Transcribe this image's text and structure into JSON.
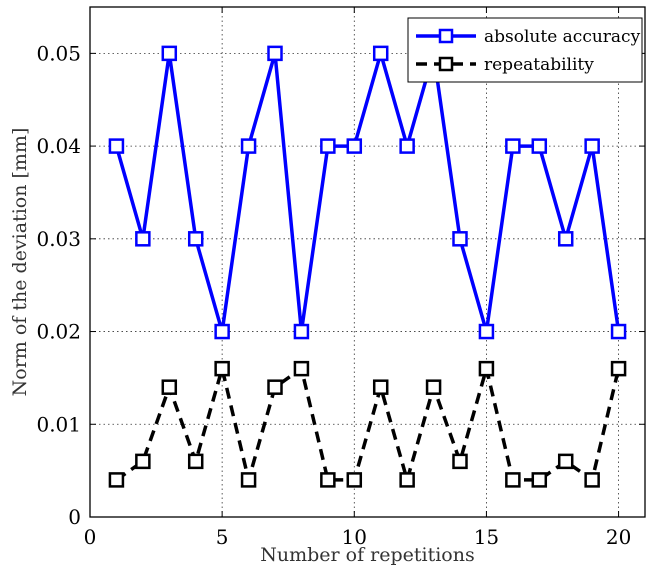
{
  "chart_data": {
    "type": "line",
    "xlabel": "Number of repetitions",
    "ylabel": "Norm of the deviation [mm]",
    "xlim": [
      0,
      21
    ],
    "ylim": [
      0,
      0.055
    ],
    "grid": true,
    "legend_position": "top-right",
    "x_ticks": [
      0,
      5,
      10,
      15,
      20
    ],
    "x_tick_labels": [
      "0",
      "5",
      "10",
      "15",
      "20"
    ],
    "y_ticks": [
      0,
      0.01,
      0.02,
      0.03,
      0.04,
      0.05
    ],
    "y_tick_labels": [
      "0",
      "0.01",
      "0.02",
      "0.03",
      "0.04",
      "0.05"
    ],
    "x": [
      1,
      2,
      3,
      4,
      5,
      6,
      7,
      8,
      9,
      10,
      11,
      12,
      13,
      14,
      15,
      16,
      17,
      18,
      19,
      20
    ],
    "series": [
      {
        "name": "absolute accuracy",
        "color": "#0000ff",
        "line_style": "solid",
        "marker": "square",
        "values": [
          0.04,
          0.03,
          0.05,
          0.03,
          0.02,
          0.04,
          0.05,
          0.02,
          0.04,
          0.04,
          0.05,
          0.04,
          0.05,
          0.03,
          0.02,
          0.04,
          0.04,
          0.03,
          0.04,
          0.02
        ]
      },
      {
        "name": "repeatability",
        "color": "#000000",
        "line_style": "dashed",
        "marker": "square",
        "values": [
          0.004,
          0.006,
          0.014,
          0.006,
          0.016,
          0.004,
          0.014,
          0.016,
          0.004,
          0.004,
          0.014,
          0.004,
          0.014,
          0.006,
          0.016,
          0.004,
          0.004,
          0.006,
          0.004,
          0.016
        ]
      }
    ]
  }
}
